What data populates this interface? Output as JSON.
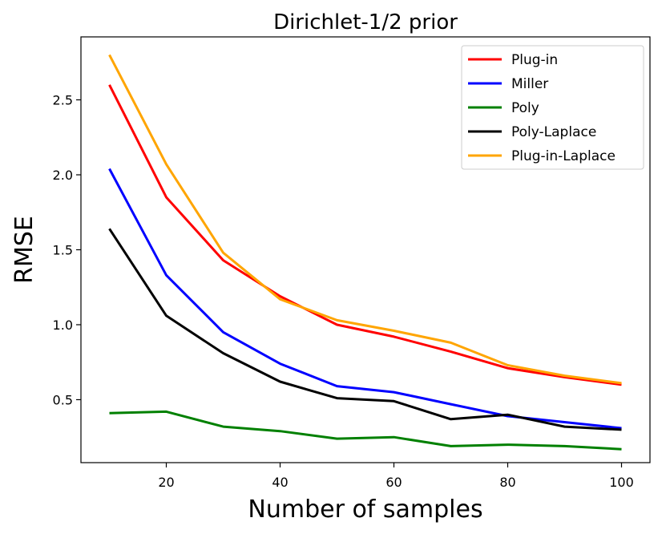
{
  "chart_data": {
    "type": "line",
    "title": "Dirichlet-1/2 prior",
    "xlabel": "Number of samples",
    "ylabel": "RMSE",
    "x": [
      10,
      20,
      30,
      40,
      50,
      60,
      70,
      80,
      90,
      100
    ],
    "xlim": [
      5,
      105
    ],
    "ylim": [
      0.08,
      2.92
    ],
    "xticks": [
      20,
      40,
      60,
      80,
      100
    ],
    "yticks": [
      0.5,
      1.0,
      1.5,
      2.0,
      2.5
    ],
    "xtick_labels": [
      "20",
      "40",
      "60",
      "80",
      "100"
    ],
    "ytick_labels": [
      "0.5",
      "1.0",
      "1.5",
      "2.0",
      "2.5"
    ],
    "grid": false,
    "legend_position": "top-right",
    "series": [
      {
        "name": "Plug-in",
        "color": "#ff0000",
        "values": [
          2.6,
          1.85,
          1.43,
          1.19,
          1.0,
          0.92,
          0.82,
          0.71,
          0.65,
          0.6
        ]
      },
      {
        "name": "Miller",
        "color": "#0000ff",
        "values": [
          2.04,
          1.33,
          0.95,
          0.74,
          0.59,
          0.55,
          0.47,
          0.39,
          0.35,
          0.31
        ]
      },
      {
        "name": "Poly",
        "color": "#008000",
        "values": [
          0.41,
          0.42,
          0.32,
          0.29,
          0.24,
          0.25,
          0.19,
          0.2,
          0.19,
          0.17
        ]
      },
      {
        "name": "Poly-Laplace",
        "color": "#000000",
        "values": [
          1.64,
          1.06,
          0.81,
          0.62,
          0.51,
          0.49,
          0.37,
          0.4,
          0.32,
          0.3
        ]
      },
      {
        "name": "Plug-in-Laplace",
        "color": "#ffa500",
        "values": [
          2.8,
          2.07,
          1.48,
          1.17,
          1.03,
          0.96,
          0.88,
          0.73,
          0.66,
          0.61
        ]
      }
    ]
  }
}
